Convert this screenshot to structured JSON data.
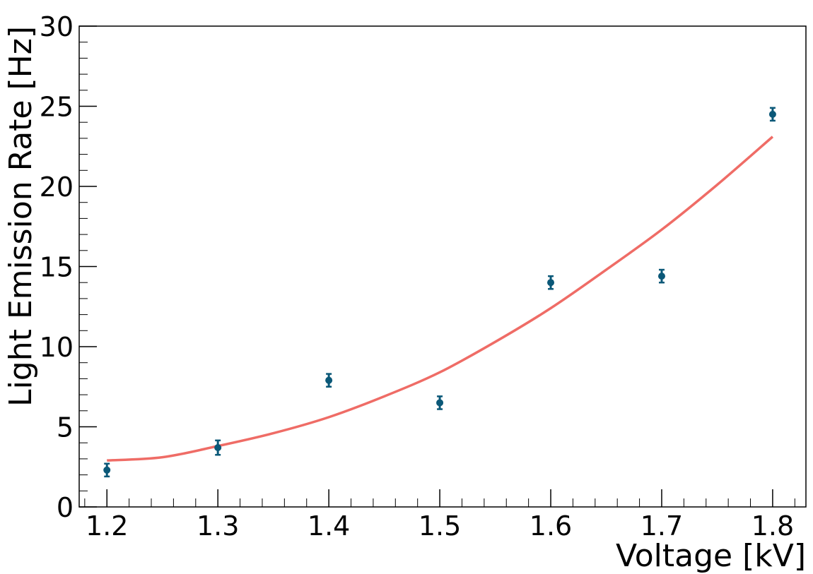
{
  "chart_data": {
    "type": "scatter",
    "title": "",
    "xlabel": "Voltage [kV]",
    "ylabel": "Light Emission Rate [Hz]",
    "xlim": [
      1.175,
      1.83
    ],
    "ylim": [
      0,
      30
    ],
    "x_ticks": [
      1.2,
      1.3,
      1.4,
      1.5,
      1.6,
      1.7,
      1.8
    ],
    "x_tick_labels": [
      "1.2",
      "1.3",
      "1.4",
      "1.5",
      "1.6",
      "1.7",
      "1.8"
    ],
    "y_ticks": [
      0,
      5,
      10,
      15,
      20,
      25,
      30
    ],
    "y_tick_labels": [
      "0",
      "5",
      "10",
      "15",
      "20",
      "25",
      "30"
    ],
    "grid": false,
    "series": [
      {
        "kind": "points_with_errorbars",
        "color": "#0b5878",
        "x": [
          1.2,
          1.3,
          1.4,
          1.5,
          1.6,
          1.7,
          1.8
        ],
        "y": [
          2.3,
          3.7,
          7.9,
          6.5,
          14.0,
          14.4,
          24.5
        ],
        "yerr": [
          0.4,
          0.45,
          0.4,
          0.4,
          0.4,
          0.4,
          0.4
        ]
      },
      {
        "kind": "fit_curve",
        "color": "#ef6c66",
        "x": [
          1.2,
          1.25,
          1.3,
          1.35,
          1.4,
          1.45,
          1.5,
          1.55,
          1.6,
          1.65,
          1.7,
          1.75,
          1.8
        ],
        "y": [
          2.9,
          3.1,
          3.8,
          4.6,
          5.6,
          6.9,
          8.4,
          10.3,
          12.4,
          14.8,
          17.3,
          20.1,
          23.1
        ]
      }
    ]
  }
}
